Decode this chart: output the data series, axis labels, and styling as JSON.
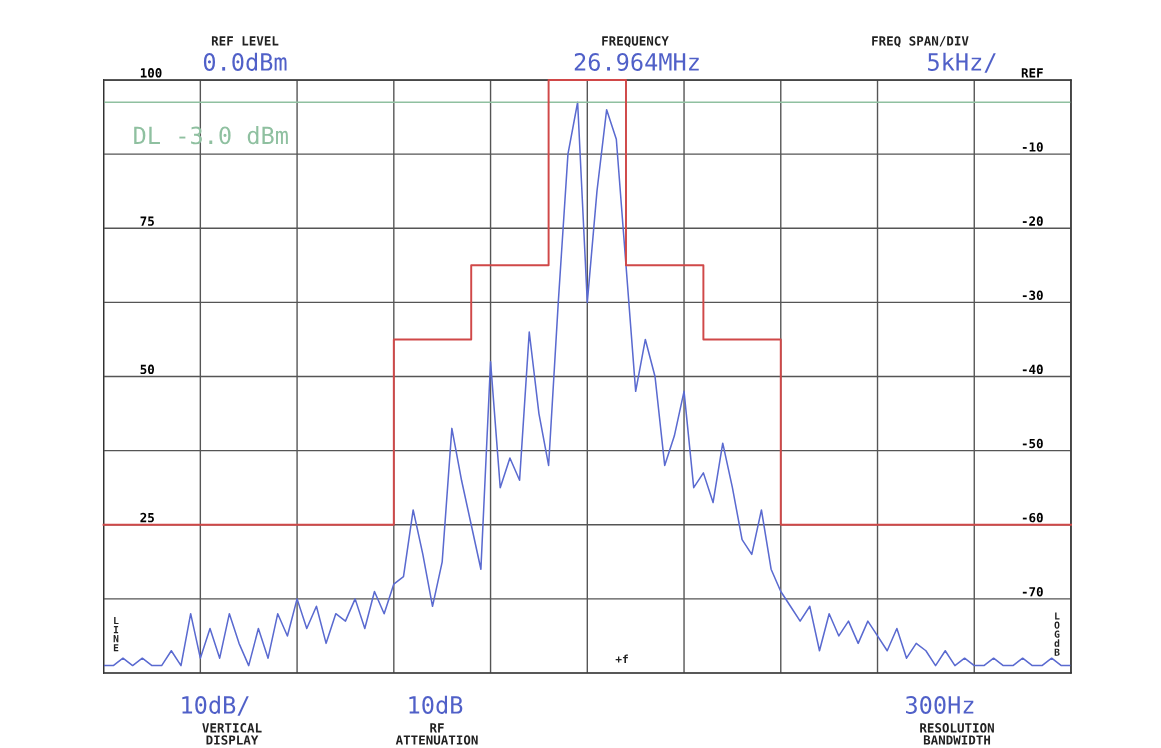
{
  "chart_data": {
    "type": "line",
    "categories": [
      null,
      null,
      null,
      null,
      null,
      null,
      null,
      null,
      null,
      null,
      null,
      null,
      null,
      null,
      null,
      null,
      null,
      null,
      null,
      null,
      null,
      null,
      null,
      null,
      null,
      null,
      null,
      null,
      null,
      null,
      null,
      null,
      null,
      null,
      null,
      null,
      null,
      null,
      null,
      null,
      null,
      null,
      null,
      null,
      null,
      null,
      null,
      null,
      null,
      null,
      null,
      null,
      null,
      null,
      null,
      null,
      null,
      null,
      null,
      null,
      null,
      null,
      null,
      null,
      null,
      null,
      null,
      null,
      null,
      null,
      null,
      null,
      null,
      null,
      null,
      null,
      null,
      null,
      null,
      null,
      null,
      null,
      null,
      null,
      null,
      null,
      null,
      null,
      null,
      null,
      null,
      null,
      null,
      null,
      null,
      null,
      null,
      null,
      null,
      null,
      null
    ],
    "series": [
      {
        "color": "#5a6ad0",
        "values": [
          -79,
          -79,
          -78,
          -79,
          -78,
          -79,
          -79,
          -77,
          -79,
          -72,
          -78,
          -74,
          -78,
          -72,
          -76,
          -79,
          -74,
          -78,
          -72,
          -75,
          -70,
          -74,
          -71,
          -76,
          -72,
          -73,
          -70,
          -74,
          -69,
          -72,
          -68,
          -67,
          -58,
          -64,
          -71,
          -65,
          -47,
          -54,
          -60,
          -66,
          -38,
          -55,
          -51,
          -54,
          -34,
          -45,
          -52,
          -30,
          -10,
          -3,
          -30,
          -15,
          -4,
          -8,
          -25,
          -42,
          -35,
          -40,
          -52,
          -48,
          -42,
          -55,
          -53,
          -57,
          -49,
          -55,
          -62,
          -64,
          -58,
          -66,
          -69,
          -71,
          -73,
          -71,
          -77,
          -72,
          -75,
          -73,
          -76,
          -73,
          -75,
          -77,
          -74,
          -78,
          -76,
          -77,
          -79,
          -77,
          -79,
          -78,
          -79,
          -79,
          -78,
          -79,
          -79,
          -78,
          -79,
          -79,
          -78,
          -79,
          -79
        ]
      },
      {
        "type": "step",
        "color": "#d04848",
        "values": [
          -60,
          -60,
          -60,
          -60,
          -60,
          -60,
          -60,
          -60,
          -60,
          -60,
          -60,
          -60,
          -60,
          -60,
          -60,
          -60,
          -60,
          -60,
          -60,
          -60,
          -60,
          -60,
          -60,
          -60,
          -60,
          -60,
          -60,
          -60,
          -60,
          -60,
          -35,
          -35,
          -35,
          -35,
          -35,
          -35,
          -35,
          -35,
          -25,
          -25,
          -25,
          -25,
          -25,
          -25,
          -25,
          -25,
          0,
          0,
          0,
          0,
          0,
          0,
          0,
          0,
          -25,
          -25,
          -25,
          -25,
          -25,
          -25,
          -25,
          -25,
          -35,
          -35,
          -35,
          -35,
          -35,
          -35,
          -35,
          -35,
          -60,
          -60,
          -60,
          -60,
          -60,
          -60,
          -60,
          -60,
          -60,
          -60,
          -60,
          -60,
          -60,
          -60,
          -60,
          -60,
          -60,
          -60,
          -60,
          -60,
          -60,
          -60,
          -60,
          -60,
          -60,
          -60,
          -60,
          -60,
          -60,
          -60,
          -60
        ]
      }
    ],
    "ylim": [
      -80,
      0
    ],
    "yticks": [
      {
        "value": 0,
        "label": "REF"
      },
      -10,
      -20,
      -30,
      -40,
      -50,
      -60,
      -70
    ],
    "y2lim": [
      0,
      100
    ],
    "y2ticks": [
      25,
      50,
      75,
      100
    ],
    "grid": true,
    "ref_lines": [
      {
        "axis": "y",
        "value": -3,
        "label": "DL -3.0 dBm",
        "color": "#8fc0a0"
      }
    ],
    "annotations": [
      "REF LEVEL",
      "0.0dBm",
      "FREQUENCY",
      "26.964MHz",
      "FREQ SPAN/DIV",
      "5kHz/",
      "10dB/",
      "VERTICAL\nDISPLAY",
      "10dB",
      "RF\nATTENUATION",
      "300Hz",
      "RESOLUTION\nBANDWIDTH",
      "LINE",
      "LOG dB",
      "+f"
    ]
  }
}
